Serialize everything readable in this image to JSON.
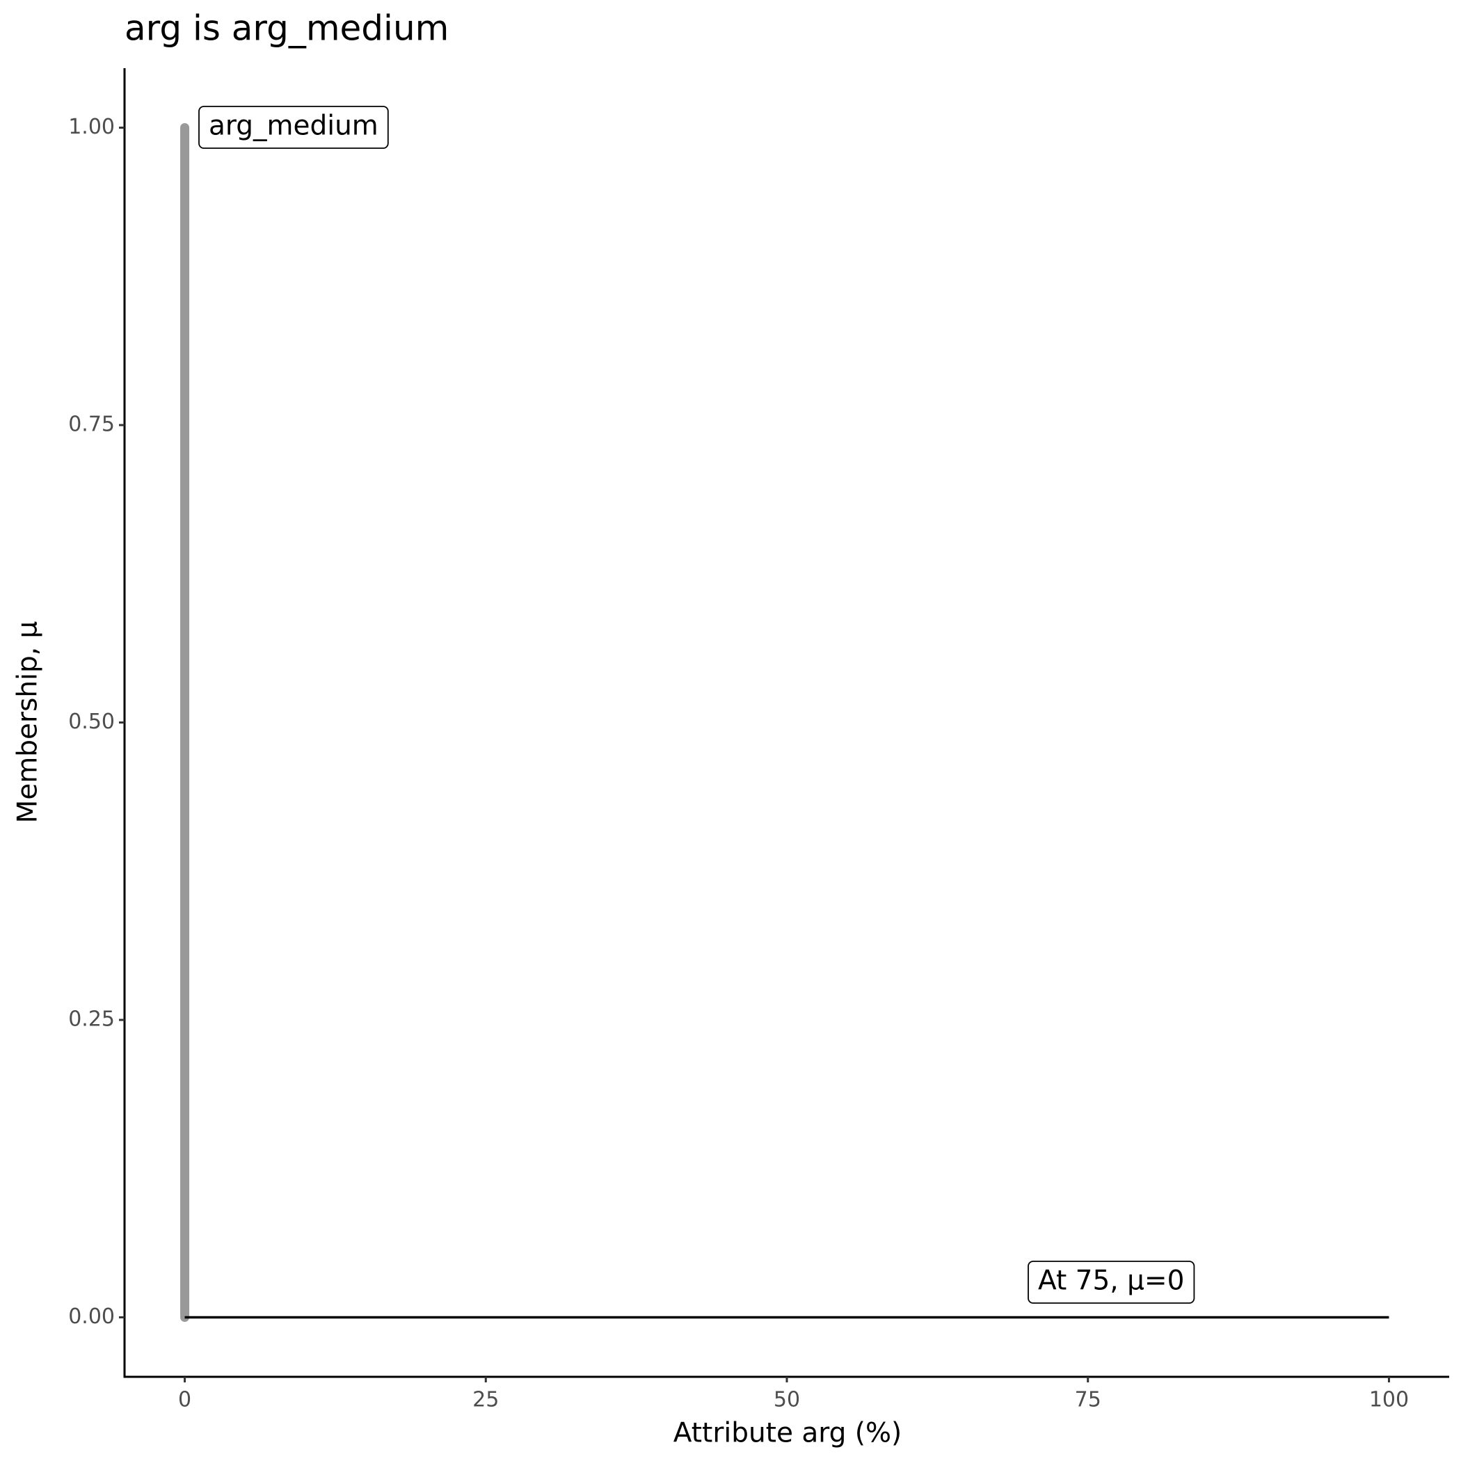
{
  "chart_data": {
    "type": "line",
    "title": "arg is arg_medium",
    "x_label": "Attribute arg (%)",
    "y_label": "Membership, μ",
    "series": [
      {
        "color": "#999999",
        "x": [
          0,
          0
        ],
        "values": [
          0,
          1
        ]
      },
      {
        "color": "#000000",
        "x": [
          0,
          100
        ],
        "values": [
          0,
          0
        ]
      }
    ],
    "annotations": [
      "arg_medium",
      "At 75, μ=0"
    ],
    "xlim": [
      -5,
      105
    ],
    "xticks": [
      0,
      25,
      50,
      75,
      100
    ],
    "ylim": [
      -0.05,
      1.05
    ],
    "yticks": [
      {
        "value": 0,
        "label": "0.00"
      },
      {
        "value": 0.25,
        "label": "0.25"
      },
      {
        "value": 0.5,
        "label": "0.50"
      },
      {
        "value": 0.75,
        "label": "0.75"
      },
      {
        "value": 1,
        "label": "1.00"
      }
    ],
    "grid": false
  }
}
